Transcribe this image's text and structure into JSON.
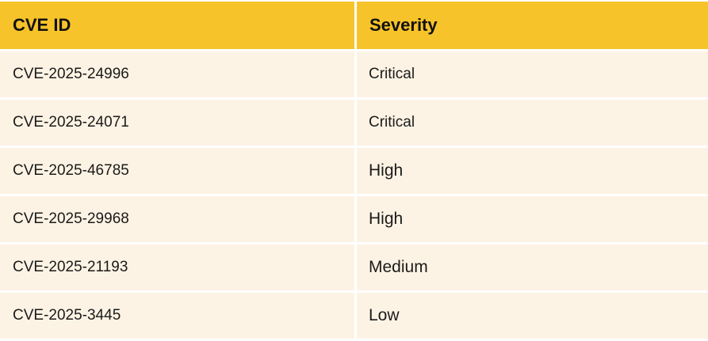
{
  "table": {
    "headers": [
      "CVE ID",
      "Severity"
    ],
    "rows": [
      {
        "cve_id": "CVE-2025-24996",
        "severity": "Critical"
      },
      {
        "cve_id": "CVE-2025-24071",
        "severity": "Critical"
      },
      {
        "cve_id": "CVE-2025-46785",
        "severity": "High"
      },
      {
        "cve_id": "CVE-2025-29968",
        "severity": "High"
      },
      {
        "cve_id": "CVE-2025-21193",
        "severity": "Medium"
      },
      {
        "cve_id": "CVE-2025-3445",
        "severity": "Low"
      }
    ]
  },
  "colors": {
    "header_bg": "#f7c32a",
    "row_bg": "#fdf3e4",
    "grid_line": "#ffffff"
  }
}
